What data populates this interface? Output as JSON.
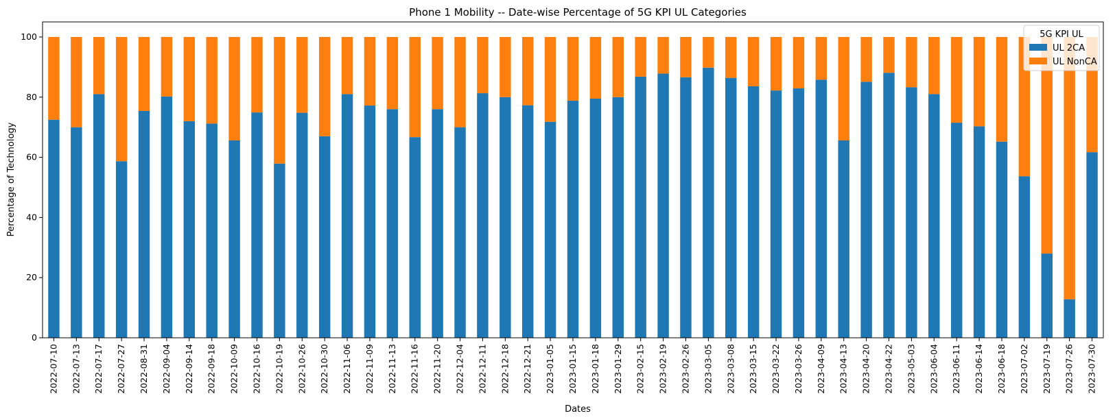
{
  "chart_data": {
    "type": "bar",
    "stacked": true,
    "title": "Phone 1 Mobility -- Date-wise Percentage of 5G KPI UL Categories",
    "xlabel": "Dates",
    "ylabel": "Percentage of Technology",
    "ylim": [
      0,
      105
    ],
    "yticks": [
      0,
      20,
      40,
      60,
      80,
      100
    ],
    "grid": false,
    "legend": {
      "title": "5G KPI UL",
      "placement": "top-right"
    },
    "categories": [
      "2022-07-10",
      "2022-07-13",
      "2022-07-17",
      "2022-07-27",
      "2022-08-31",
      "2022-09-04",
      "2022-09-14",
      "2022-09-18",
      "2022-10-09",
      "2022-10-16",
      "2022-10-19",
      "2022-10-26",
      "2022-10-30",
      "2022-11-06",
      "2022-11-09",
      "2022-11-13",
      "2022-11-16",
      "2022-11-20",
      "2022-12-04",
      "2022-12-11",
      "2022-12-18",
      "2022-12-21",
      "2023-01-05",
      "2023-01-15",
      "2023-01-18",
      "2023-01-29",
      "2023-02-15",
      "2023-02-19",
      "2023-02-26",
      "2023-03-05",
      "2023-03-08",
      "2023-03-15",
      "2023-03-22",
      "2023-03-26",
      "2023-04-09",
      "2023-04-13",
      "2023-04-20",
      "2023-04-22",
      "2023-05-03",
      "2023-06-04",
      "2023-06-11",
      "2023-06-14",
      "2023-06-18",
      "2023-07-02",
      "2023-07-19",
      "2023-07-26",
      "2023-07-30"
    ],
    "series": [
      {
        "name": "UL 2CA",
        "color": "#1f77b4",
        "values": [
          72.5,
          70,
          81,
          58.7,
          75.4,
          80.2,
          72,
          71.2,
          65.6,
          74.9,
          57.9,
          74.8,
          67,
          81,
          77.2,
          76,
          66.7,
          76,
          70,
          81.3,
          80,
          77.3,
          71.8,
          78.8,
          79.5,
          80,
          86.8,
          87.8,
          86.6,
          89.8,
          86.4,
          83.6,
          82.2,
          82.9,
          85.8,
          65.6,
          85.1,
          88.1,
          83.3,
          81,
          71.5,
          70.3,
          65.2,
          53.7,
          28,
          12.8,
          61.7
        ]
      },
      {
        "name": "UL NonCA",
        "color": "#ff7f0e",
        "values": [
          27.5,
          30,
          19,
          41.3,
          24.6,
          19.8,
          28,
          28.8,
          34.4,
          25.1,
          42.1,
          25.2,
          33,
          19,
          22.8,
          24,
          33.3,
          24,
          30,
          18.7,
          20,
          22.7,
          28.2,
          21.2,
          20.5,
          20,
          13.2,
          12.2,
          13.4,
          10.2,
          13.6,
          16.4,
          17.8,
          17.1,
          14.2,
          34.4,
          14.9,
          11.9,
          16.7,
          19,
          28.5,
          29.7,
          34.8,
          46.3,
          72,
          87.2,
          38.3
        ]
      }
    ]
  }
}
